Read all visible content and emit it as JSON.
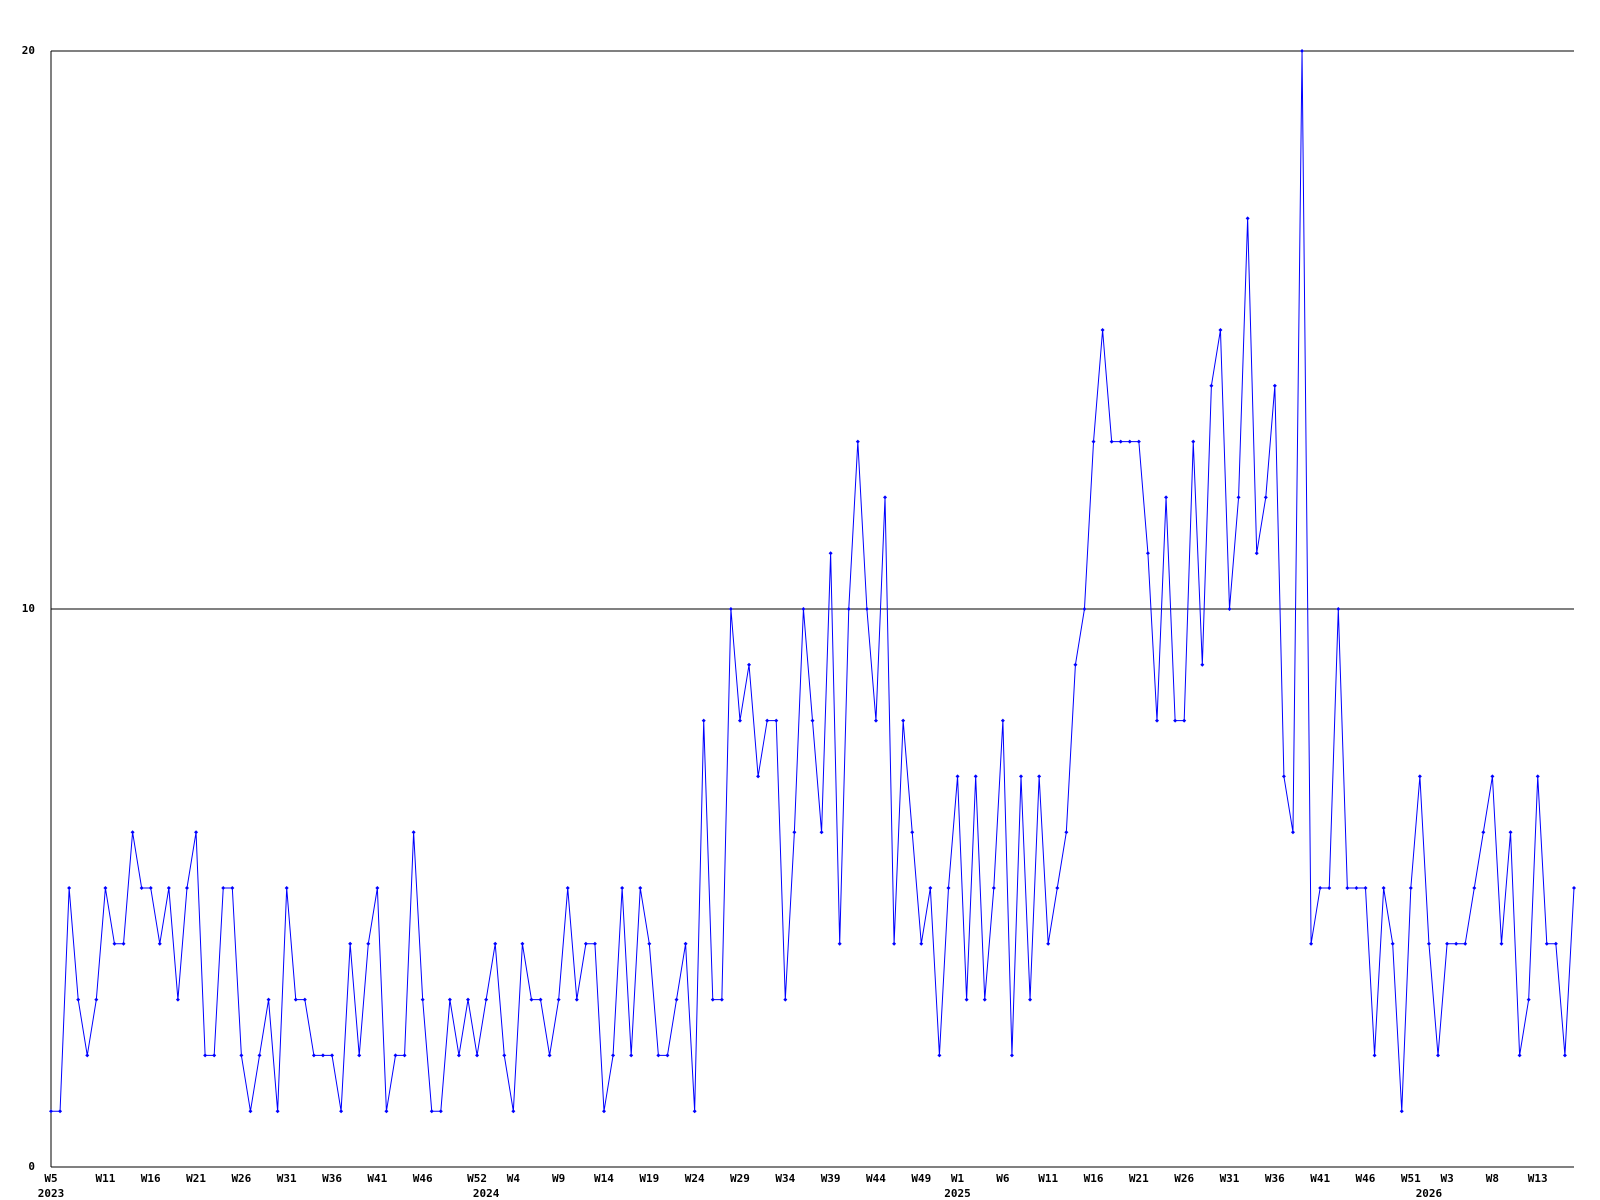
{
  "chart_data": {
    "type": "line",
    "categories": [
      "W5",
      null,
      null,
      null,
      null,
      null,
      "W11",
      null,
      null,
      null,
      null,
      "W16",
      null,
      null,
      null,
      null,
      "W21",
      null,
      null,
      null,
      null,
      "W26",
      null,
      null,
      null,
      null,
      "W31",
      null,
      null,
      null,
      null,
      "W36",
      null,
      null,
      null,
      null,
      "W41",
      null,
      null,
      null,
      null,
      "W46",
      null,
      null,
      null,
      null,
      null,
      "W52",
      null,
      null,
      null,
      "W4",
      null,
      null,
      null,
      null,
      "W9",
      null,
      null,
      null,
      null,
      "W14",
      null,
      null,
      null,
      null,
      "W19",
      null,
      null,
      null,
      null,
      "W24",
      null,
      null,
      null,
      null,
      "W29",
      null,
      null,
      null,
      null,
      "W34",
      null,
      null,
      null,
      null,
      "W39",
      null,
      null,
      null,
      null,
      "W44",
      null,
      null,
      null,
      null,
      "W49",
      null,
      null,
      null,
      "W1",
      null,
      null,
      null,
      null,
      "W6",
      null,
      null,
      null,
      null,
      "W11",
      null,
      null,
      null,
      null,
      "W16",
      null,
      null,
      null,
      null,
      "W21",
      null,
      null,
      null,
      null,
      "W26",
      null,
      null,
      null,
      null,
      "W31",
      null,
      null,
      null,
      null,
      "W36",
      null,
      null,
      null,
      null,
      "W41",
      null,
      null,
      null,
      null,
      "W46",
      null,
      null,
      null,
      null,
      "W51",
      null,
      null,
      null,
      "W3",
      null,
      null,
      null,
      null,
      "W8",
      null,
      null,
      null,
      null,
      "W13",
      null,
      null,
      null,
      null
    ],
    "years": [
      "2023",
      null,
      null,
      null,
      null,
      null,
      null,
      null,
      null,
      null,
      null,
      null,
      null,
      null,
      null,
      null,
      null,
      null,
      null,
      null,
      null,
      null,
      null,
      null,
      null,
      null,
      null,
      null,
      null,
      null,
      null,
      null,
      null,
      null,
      null,
      null,
      null,
      null,
      null,
      null,
      null,
      null,
      null,
      null,
      null,
      null,
      null,
      null,
      "2024",
      null,
      null,
      null,
      null,
      null,
      null,
      null,
      null,
      null,
      null,
      null,
      null,
      null,
      null,
      null,
      null,
      null,
      null,
      null,
      null,
      null,
      null,
      null,
      null,
      null,
      null,
      null,
      null,
      null,
      null,
      null,
      null,
      null,
      null,
      null,
      null,
      null,
      null,
      null,
      null,
      null,
      null,
      null,
      null,
      null,
      null,
      null,
      null,
      null,
      null,
      null,
      "2025",
      null,
      null,
      null,
      null,
      null,
      null,
      null,
      null,
      null,
      null,
      null,
      null,
      null,
      null,
      null,
      null,
      null,
      null,
      null,
      null,
      null,
      null,
      null,
      null,
      null,
      null,
      null,
      null,
      null,
      null,
      null,
      null,
      null,
      null,
      null,
      null,
      null,
      null,
      null,
      null,
      null,
      null,
      null,
      null,
      null,
      null,
      null,
      null,
      null,
      null,
      null,
      "2026",
      null,
      null,
      null,
      null,
      null,
      null,
      null,
      null,
      null,
      null,
      null,
      null,
      null,
      null,
      null,
      null
    ],
    "values": [
      1,
      1,
      5,
      3,
      2,
      3,
      5,
      4,
      4,
      6,
      5,
      5,
      4,
      5,
      3,
      5,
      6,
      2,
      2,
      5,
      5,
      2,
      1,
      2,
      3,
      1,
      5,
      3,
      3,
      2,
      2,
      2,
      1,
      4,
      2,
      4,
      5,
      1,
      2,
      2,
      6,
      3,
      1,
      1,
      3,
      2,
      3,
      2,
      3,
      4,
      2,
      1,
      4,
      3,
      3,
      2,
      3,
      5,
      3,
      4,
      4,
      1,
      2,
      5,
      2,
      5,
      4,
      2,
      2,
      3,
      4,
      1,
      8,
      3,
      3,
      10,
      8,
      9,
      7,
      8,
      8,
      3,
      6,
      10,
      8,
      6,
      11,
      4,
      10,
      13,
      10,
      8,
      12,
      4,
      8,
      6,
      4,
      5,
      2,
      5,
      7,
      3,
      7,
      3,
      5,
      8,
      2,
      7,
      3,
      7,
      4,
      5,
      6,
      9,
      10,
      13,
      15,
      13,
      13,
      13,
      13,
      11,
      8,
      12,
      8,
      8,
      13,
      9,
      14,
      15,
      10,
      12,
      17,
      11,
      12,
      14,
      7,
      6,
      20,
      4,
      5,
      5,
      10,
      5,
      5,
      5,
      2,
      5,
      4,
      1,
      5,
      7,
      4,
      2,
      4,
      4,
      4,
      5,
      6,
      7,
      4,
      6,
      2,
      3,
      7,
      4,
      4,
      2,
      5
    ],
    "color": "#0000ff",
    "ylim": [
      0,
      20
    ],
    "yticks": [
      0,
      10,
      20
    ],
    "grid": true
  }
}
